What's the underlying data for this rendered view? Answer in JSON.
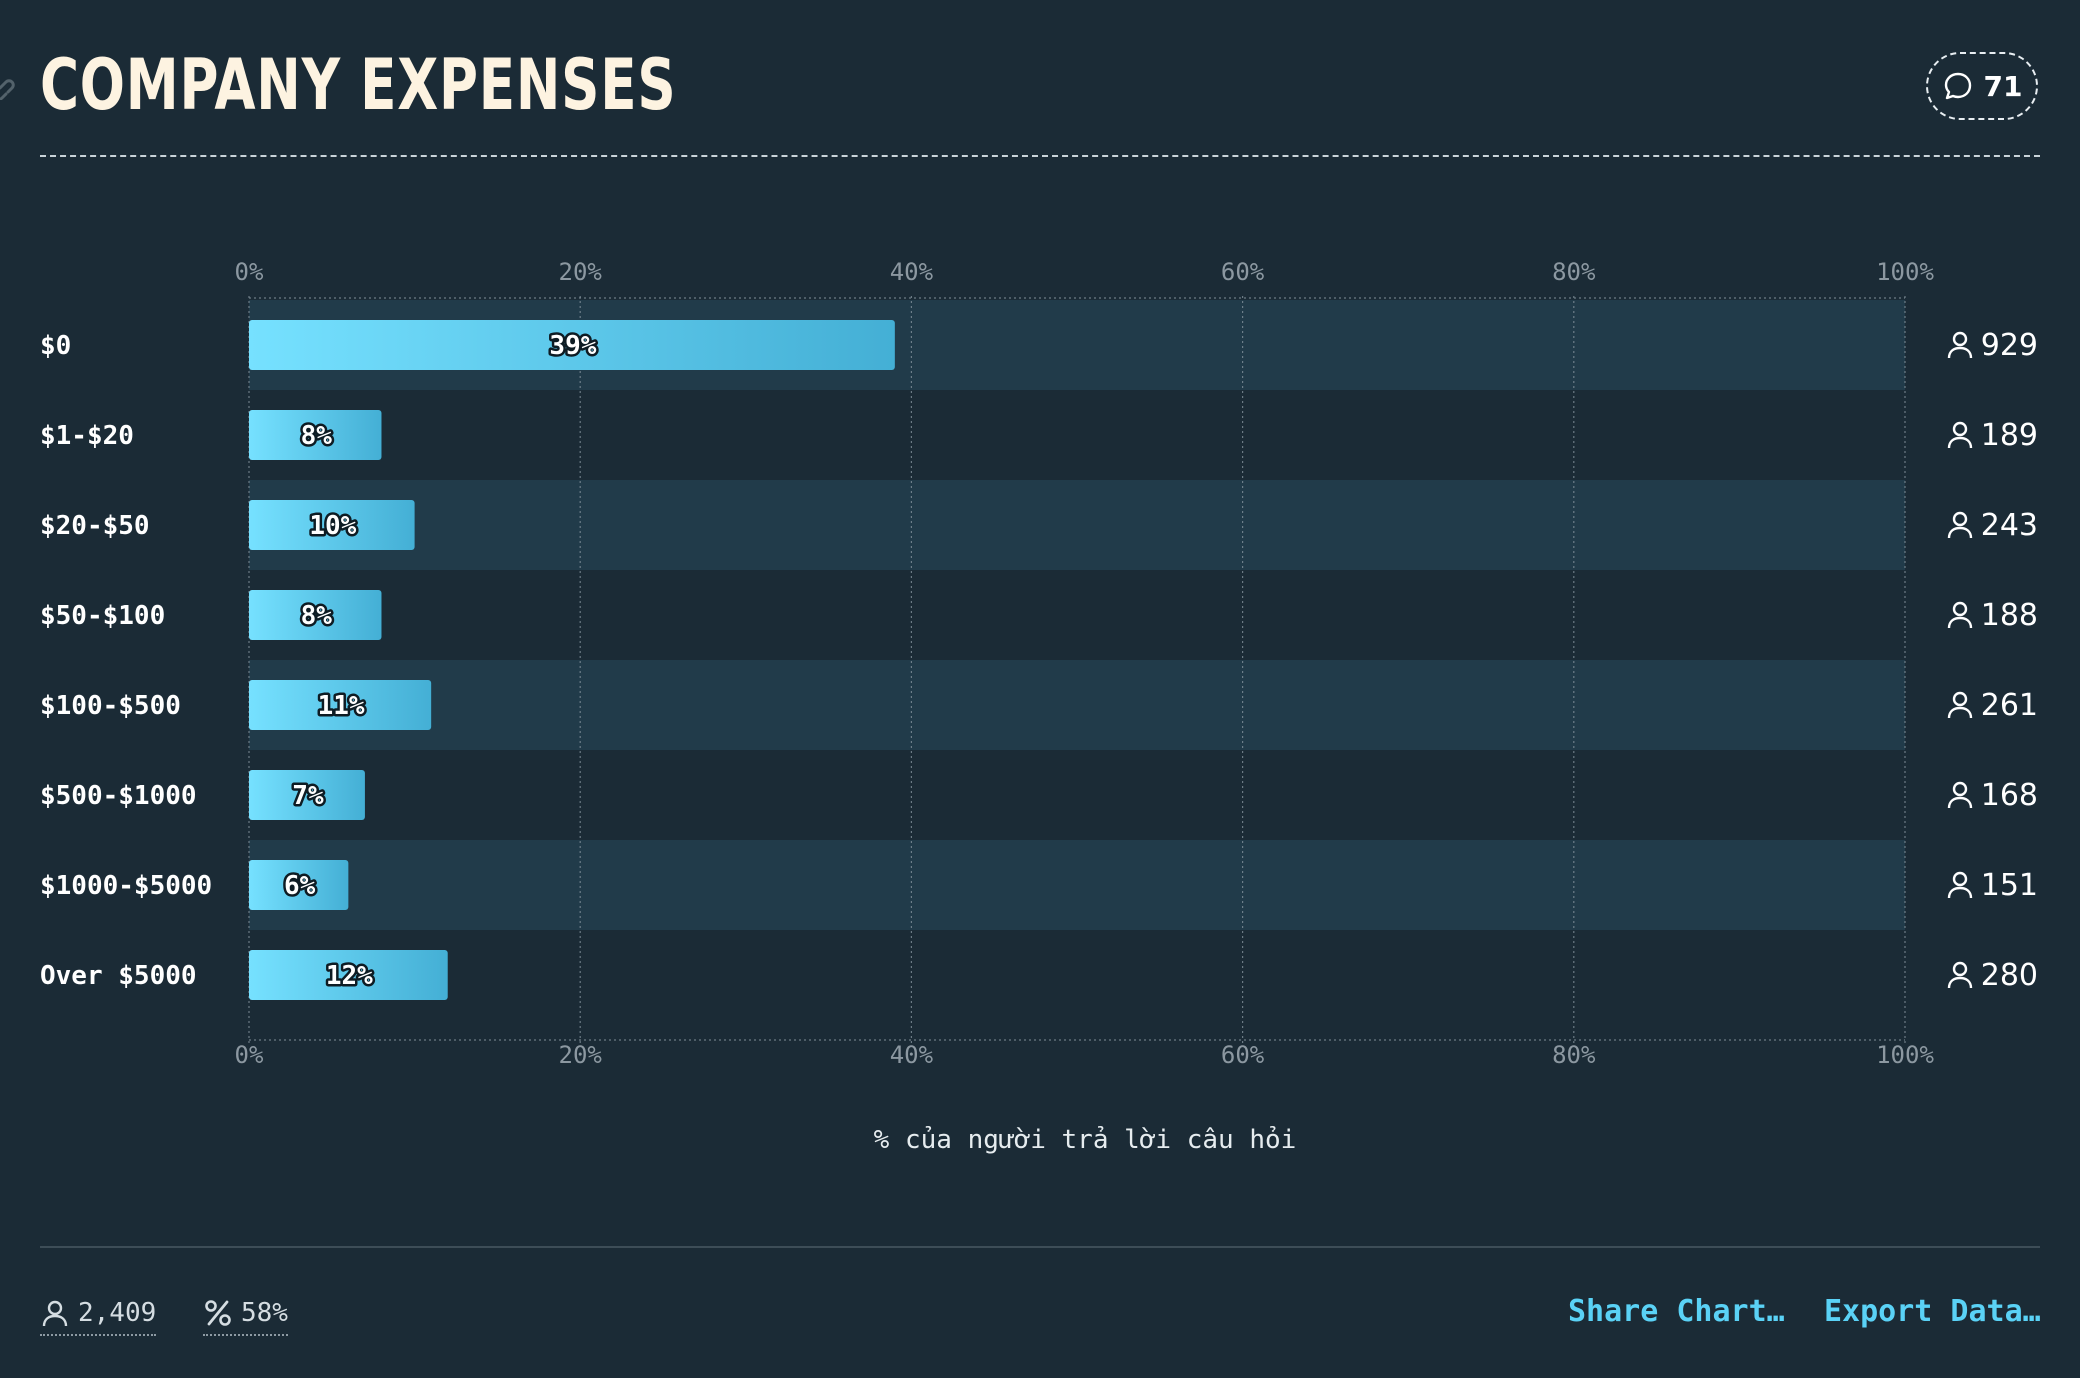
{
  "title": "COMPANY EXPENSES",
  "comment_count": "71",
  "colors": {
    "background": "#1b2b36",
    "row_alt": "#213b4a",
    "bar_start": "#76e1ff",
    "bar_end": "#44afd5",
    "link": "#5ad2f6"
  },
  "chart_data": {
    "type": "bar",
    "orientation": "horizontal",
    "categories": [
      "$0",
      "$1-$20",
      "$20-$50",
      "$50-$100",
      "$100-$500",
      "$500-$1000",
      "$1000-$5000",
      "Over $5000"
    ],
    "values": [
      39,
      8,
      10,
      8,
      11,
      7,
      6,
      12
    ],
    "value_labels": [
      "39%",
      "8%",
      "10%",
      "8%",
      "11%",
      "7%",
      "6%",
      "12%"
    ],
    "respondent_counts": [
      "929",
      "189",
      "243",
      "188",
      "261",
      "168",
      "151",
      "280"
    ],
    "xlim": [
      0,
      100
    ],
    "ticks": [
      "0%",
      "20%",
      "40%",
      "60%",
      "80%",
      "100%"
    ],
    "xlabel": "% của người trả lời câu hỏi",
    "grid": true
  },
  "footer": {
    "respondents": "2,409",
    "percent": "58%",
    "share_label": "Share Chart…",
    "export_label": "Export Data…"
  }
}
